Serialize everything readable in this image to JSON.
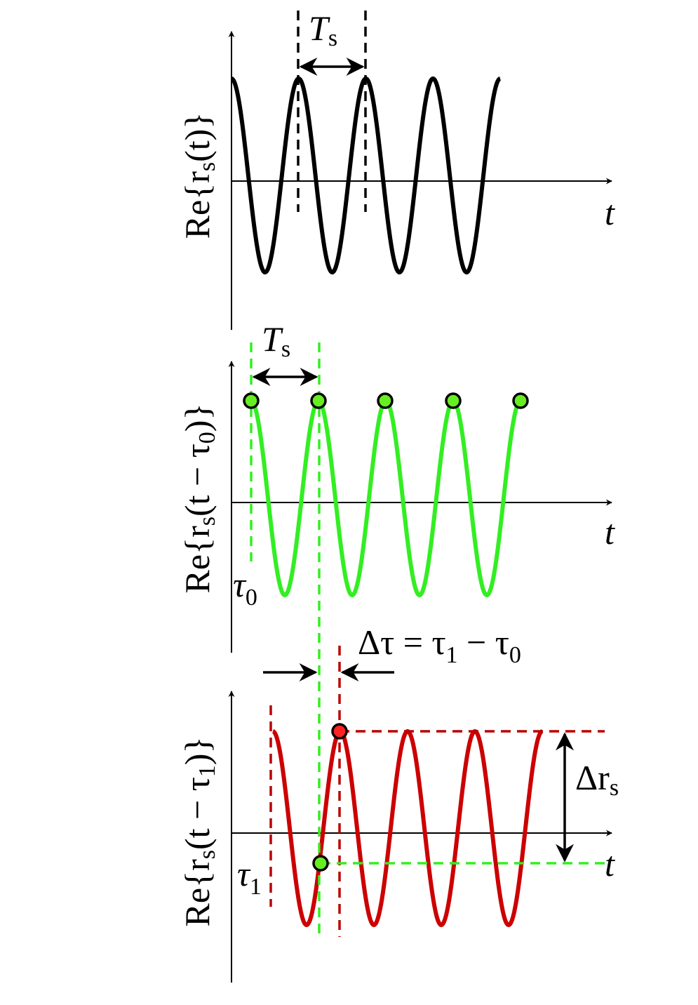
{
  "panels": [
    {
      "ylabel": {
        "pre": "Re{r",
        "sub": "s",
        "post": "(t)}"
      },
      "xlabel": "t",
      "period_label": {
        "main": "T",
        "sub": "s"
      }
    },
    {
      "ylabel": {
        "pre": "Re{r",
        "sub": "s",
        "post": "(t − τ",
        "sub2": "0",
        "post2": ")}"
      },
      "xlabel": "t",
      "period_label": {
        "main": "T",
        "sub": "s"
      },
      "delay_label": {
        "main": "τ",
        "sub": "0"
      }
    },
    {
      "ylabel": {
        "pre": "Re{r",
        "sub": "s",
        "post": "(t − τ",
        "sub2": "1",
        "post2": ")}"
      },
      "xlabel": "t",
      "delay_label": {
        "main": "τ",
        "sub": "1"
      },
      "delta_tau_label": {
        "pre": "Δτ = τ",
        "sub": "1",
        "mid": " − τ",
        "sub2": "0"
      },
      "delta_r_label": {
        "main": "Δr",
        "sub": "s"
      }
    }
  ]
}
